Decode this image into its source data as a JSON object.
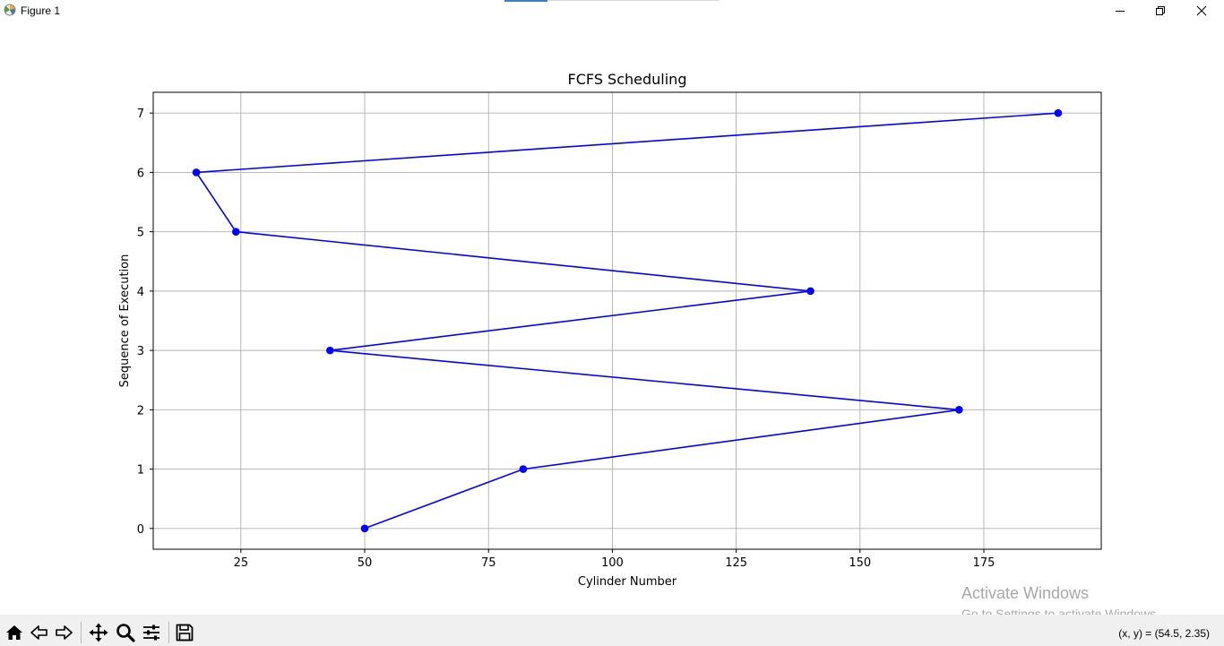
{
  "window": {
    "title": "Figure 1",
    "icons": {
      "app": "matplotlib-figure-icon",
      "minimize": "minimize-icon",
      "restore": "restore-icon",
      "close": "close-icon"
    }
  },
  "toolbar": {
    "buttons": [
      {
        "name": "home-button",
        "icon": "home-icon"
      },
      {
        "name": "back-button",
        "icon": "back-arrow-icon"
      },
      {
        "name": "forward-button",
        "icon": "forward-arrow-icon"
      },
      {
        "name": "pan-button",
        "icon": "move-icon"
      },
      {
        "name": "zoom-button",
        "icon": "zoom-icon"
      },
      {
        "name": "configure-subplots-button",
        "icon": "sliders-icon"
      },
      {
        "name": "save-button",
        "icon": "save-icon"
      }
    ],
    "coordinates": "(x, y) = (54.5, 2.35)"
  },
  "watermark": {
    "line1": "Activate Windows",
    "line2": "Go to Settings to activate Windows."
  },
  "chart_data": {
    "type": "line",
    "title": "FCFS Scheduling",
    "xlabel": "Cylinder Number",
    "ylabel": "Sequence of Execution",
    "x": [
      50,
      82,
      170,
      43,
      140,
      24,
      16,
      190
    ],
    "y": [
      0,
      1,
      2,
      3,
      4,
      5,
      6,
      7
    ],
    "xlim": [
      7.3,
      198.7
    ],
    "ylim": [
      -0.35,
      7.35
    ],
    "xticks": [
      25,
      50,
      75,
      100,
      125,
      150,
      175
    ],
    "yticks": [
      0,
      1,
      2,
      3,
      4,
      5,
      6,
      7
    ],
    "grid": true,
    "marker": "circle",
    "color": "#0000ff"
  }
}
